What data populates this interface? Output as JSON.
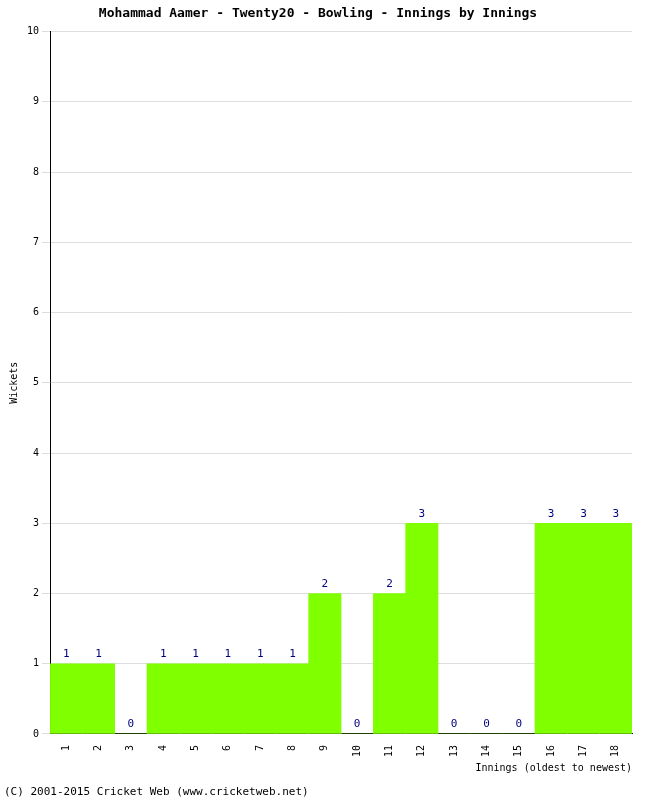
{
  "chart_data": {
    "type": "bar",
    "title": "Mohammad Aamer - Twenty20 - Bowling - Innings by Innings",
    "x_label": "Innings (oldest to newest)",
    "y_label": "Wickets",
    "categories": [
      "1",
      "2",
      "3",
      "4",
      "5",
      "6",
      "7",
      "8",
      "9",
      "10",
      "11",
      "12",
      "13",
      "14",
      "15",
      "16",
      "17",
      "18"
    ],
    "values": [
      1,
      1,
      0,
      1,
      1,
      1,
      1,
      1,
      2,
      0,
      2,
      3,
      0,
      0,
      0,
      3,
      3,
      3
    ],
    "color": "#80ff00",
    "ylim": [
      0,
      10
    ],
    "yticks": [
      0,
      1,
      2,
      3,
      4,
      5,
      6,
      7,
      8,
      9,
      10
    ],
    "grid": true,
    "data_labels": true,
    "annotations": [
      "(C) 2001-2015 Cricket Web (www.cricketweb.net)"
    ]
  }
}
